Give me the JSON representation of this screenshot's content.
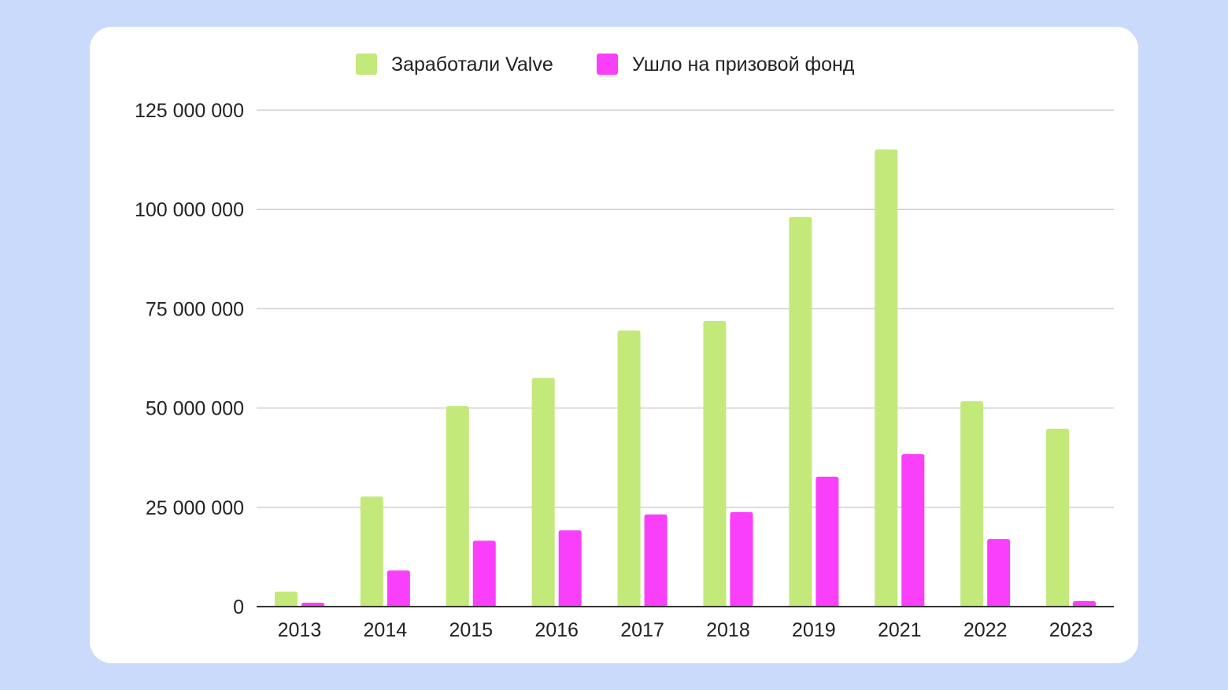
{
  "chart_data": {
    "type": "bar",
    "title": "",
    "xlabel": "",
    "ylabel": "",
    "categories": [
      "2013",
      "2014",
      "2015",
      "2016",
      "2017",
      "2018",
      "2019",
      "2021",
      "2022",
      "2023"
    ],
    "series": [
      {
        "name": "Заработали Valve",
        "color": "#c3e97a",
        "values": [
          3800000,
          27700000,
          50500000,
          57600000,
          69500000,
          71900000,
          98100000,
          115100000,
          51700000,
          44800000
        ]
      },
      {
        "name": "Ушло на призовой фонд",
        "color": "#fa3ffa",
        "values": [
          1000000,
          9100000,
          16600000,
          19200000,
          23200000,
          23800000,
          32700000,
          38400000,
          17000000,
          1400000
        ]
      }
    ],
    "ylim": [
      0,
      125000000
    ],
    "yticks": [
      0,
      25000000,
      50000000,
      75000000,
      100000000,
      125000000
    ],
    "ytick_labels": [
      "0",
      "25 000 000",
      "50 000 000",
      "75 000 000",
      "100 000 000",
      "125 000 000"
    ],
    "grid": true,
    "legend": "top"
  }
}
